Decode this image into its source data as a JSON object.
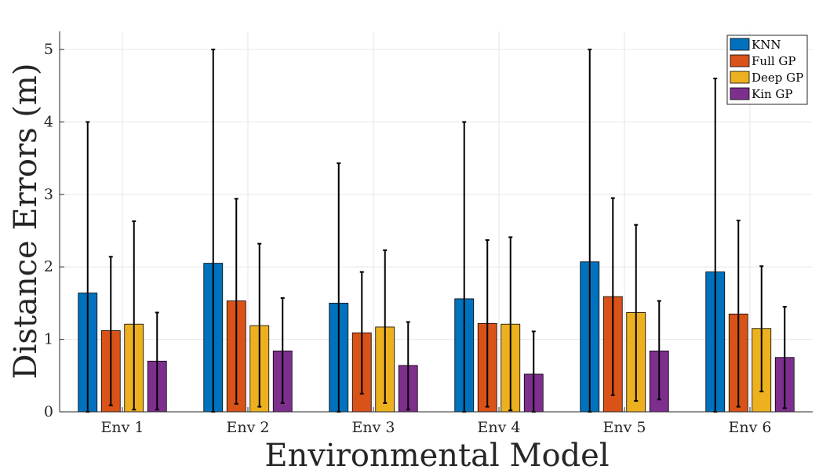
{
  "chart_data": {
    "type": "bar",
    "title": "",
    "xlabel": "Environmental Model",
    "ylabel": "Distance Errors (m)",
    "categories": [
      "Env 1",
      "Env 2",
      "Env 3",
      "Env 4",
      "Env 5",
      "Env 6"
    ],
    "ylim": [
      0,
      5.25
    ],
    "yticks": [
      0,
      1,
      2,
      3,
      4,
      5
    ],
    "grid": true,
    "legend_position": "top-right",
    "series": [
      {
        "name": "KNN",
        "color": "#0072BD",
        "values": [
          1.64,
          2.05,
          1.5,
          1.56,
          2.07,
          1.93
        ],
        "err_low": [
          0,
          0,
          0,
          0,
          0,
          0
        ],
        "err_high": [
          4.0,
          5.0,
          3.43,
          4.0,
          5.0,
          4.6
        ]
      },
      {
        "name": "Full GP",
        "color": "#D95319",
        "values": [
          1.12,
          1.53,
          1.09,
          1.22,
          1.59,
          1.35
        ],
        "err_low": [
          0.09,
          0.11,
          0.25,
          0.07,
          0.23,
          0.07
        ],
        "err_high": [
          2.14,
          2.94,
          1.93,
          2.37,
          2.95,
          2.64
        ]
      },
      {
        "name": "Deep GP",
        "color": "#EDB120",
        "values": [
          1.21,
          1.19,
          1.17,
          1.21,
          1.37,
          1.15
        ],
        "err_low": [
          0.03,
          0.07,
          0.12,
          0.02,
          0.15,
          0.28
        ],
        "err_high": [
          2.63,
          2.32,
          2.23,
          2.41,
          2.58,
          2.01
        ]
      },
      {
        "name": "Kin GP",
        "color": "#7E2F8E",
        "values": [
          0.7,
          0.84,
          0.64,
          0.52,
          0.84,
          0.75
        ],
        "err_low": [
          0.03,
          0.12,
          0.03,
          0.0,
          0.17,
          0.05
        ],
        "err_high": [
          1.37,
          1.57,
          1.24,
          1.11,
          1.53,
          1.45
        ]
      }
    ]
  }
}
